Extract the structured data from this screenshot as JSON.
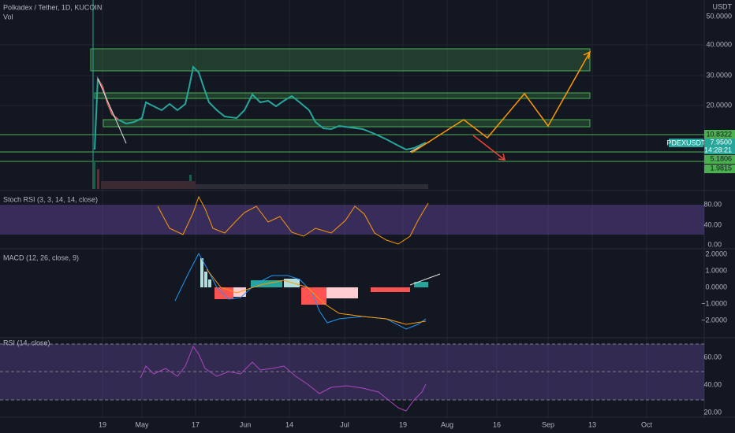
{
  "header": {
    "title": "Polkadex / Tether, 1D, KUCOIN",
    "volume": "Vol",
    "currency": "USDT"
  },
  "price_axis": {
    "ticks": [
      "50.0000",
      "40.0000",
      "30.0000",
      "20.0000"
    ],
    "labels": {
      "upper": "10.8322",
      "symbol": "PDEXUSDT",
      "last": "7.9500",
      "countdown": "14:28:21",
      "support1": "5.1806",
      "support2": "1.9815"
    }
  },
  "panes": [
    {
      "title": "Stoch RSI (3, 3, 14, 14, close)",
      "ticks": [
        "80.00",
        "40.00",
        "0.00"
      ]
    },
    {
      "title": "MACD (12, 26, close, 9)",
      "ticks": [
        "2.0000",
        "1.0000",
        "0.0000",
        "−1.0000",
        "−2.0000"
      ]
    },
    {
      "title": "RSI (14, close)",
      "ticks": [
        "60.00",
        "40.00",
        "20.00"
      ]
    }
  ],
  "time_axis": [
    "19",
    "May",
    "17",
    "Jun",
    "14",
    "Jul",
    "19",
    "Aug",
    "16",
    "Sep",
    "13",
    "Oct"
  ]
}
